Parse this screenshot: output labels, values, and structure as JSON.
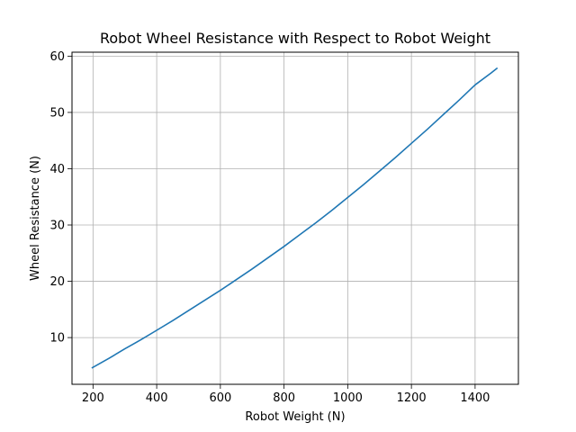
{
  "chart_data": {
    "type": "line",
    "title": "Robot Wheel Resistance with Respect to Robot Weight",
    "xlabel": "Robot Weight (N)",
    "ylabel": "Wheel Resistance (N)",
    "xlim": [
      134,
      1536
    ],
    "ylim": [
      1.7,
      60.7
    ],
    "xticks": [
      200,
      400,
      600,
      800,
      1000,
      1200,
      1400
    ],
    "yticks": [
      10,
      20,
      30,
      40,
      50,
      60
    ],
    "grid": true,
    "line_color": "#1f77b4",
    "series": [
      {
        "x": [
          196,
          250,
          300,
          350,
          400,
          450,
          500,
          550,
          600,
          650,
          700,
          750,
          800,
          850,
          900,
          950,
          1000,
          1050,
          1100,
          1150,
          1200,
          1250,
          1300,
          1350,
          1400,
          1450,
          1470
        ],
        "y": [
          4.6,
          6.3,
          8.0,
          9.6,
          11.3,
          13.0,
          14.8,
          16.6,
          18.4,
          20.3,
          22.2,
          24.2,
          26.2,
          28.3,
          30.4,
          32.6,
          34.9,
          37.2,
          39.6,
          42.0,
          44.5,
          47.0,
          49.6,
          52.2,
          54.9,
          57.0,
          57.9
        ]
      }
    ]
  }
}
